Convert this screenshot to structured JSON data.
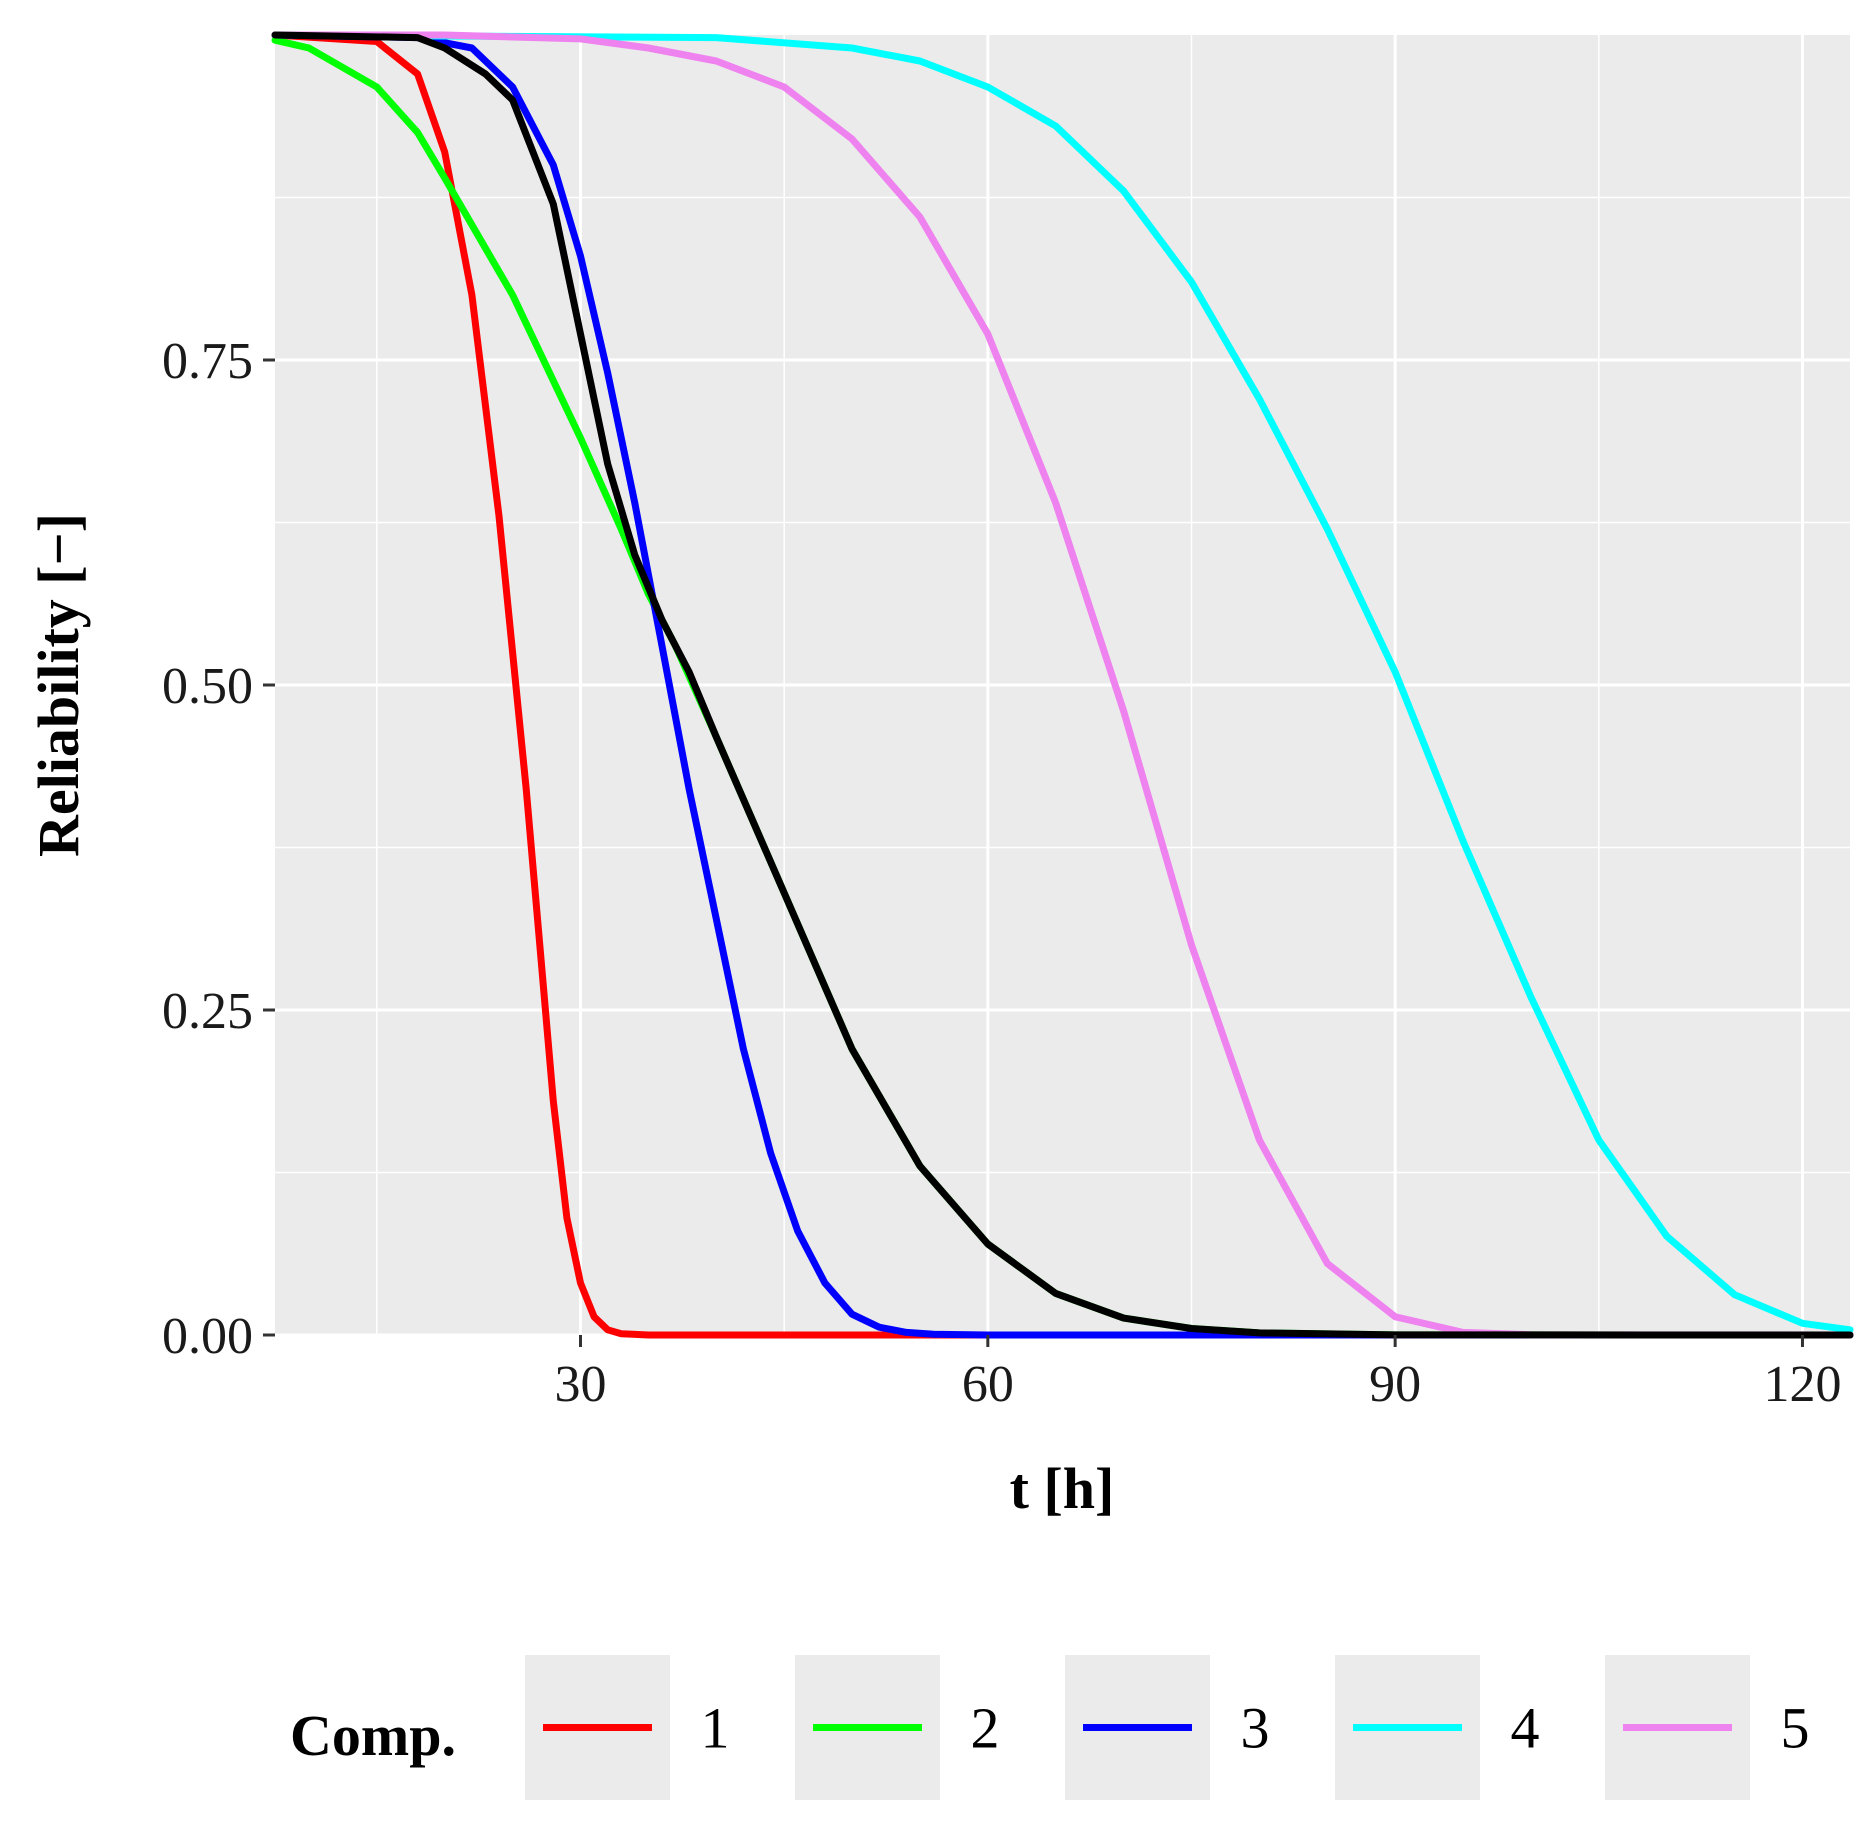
{
  "chart_data": {
    "type": "line",
    "title": "",
    "xlabel": "t [h]",
    "ylabel": "Reliability [−]",
    "xlim": [
      7.5,
      123.5
    ],
    "ylim": [
      0,
      1
    ],
    "x_ticks": [
      30,
      60,
      90,
      120
    ],
    "x_tick_labels": [
      "30",
      "60",
      "90",
      "120"
    ],
    "x_minor_ticks": [
      15,
      45,
      75,
      105
    ],
    "y_ticks": [
      0,
      0.25,
      0.5,
      0.75
    ],
    "y_tick_labels": [
      "0.00",
      "0.25",
      "0.50",
      "0.75"
    ],
    "y_minor_ticks": [
      0.125,
      0.375,
      0.625,
      0.875
    ],
    "grid": true,
    "legend": {
      "title": "Comp.",
      "position": "bottom",
      "entries": [
        "1",
        "2",
        "3",
        "4",
        "5"
      ]
    },
    "series": [
      {
        "name": "1",
        "color": "#ff0000",
        "x": [
          7.5,
          15,
          18,
          20,
          22,
          24,
          26,
          27,
          28,
          29,
          30,
          31,
          32,
          33,
          35,
          40,
          123.5
        ],
        "y": [
          1.0,
          0.995,
          0.97,
          0.91,
          0.8,
          0.63,
          0.42,
          0.3,
          0.18,
          0.09,
          0.04,
          0.014,
          0.004,
          0.001,
          0.0,
          0.0,
          0.0
        ]
      },
      {
        "name": "2",
        "color": "#00ff00",
        "x": [
          7.5,
          10,
          15,
          18,
          20,
          25,
          30,
          33,
          35,
          37,
          40,
          45,
          50,
          55,
          60,
          65,
          70,
          75,
          80,
          90,
          123.5
        ],
        "y": [
          0.996,
          0.99,
          0.96,
          0.925,
          0.89,
          0.8,
          0.69,
          0.62,
          0.57,
          0.53,
          0.46,
          0.34,
          0.22,
          0.13,
          0.07,
          0.032,
          0.013,
          0.005,
          0.0016,
          0.0001,
          0.0
        ]
      },
      {
        "name": "3",
        "color": "#0000ff",
        "x": [
          7.5,
          18,
          22,
          25,
          28,
          30,
          32,
          34,
          36,
          38,
          40,
          42,
          44,
          46,
          48,
          50,
          52,
          54,
          56,
          60,
          123.5
        ],
        "y": [
          1.0,
          0.998,
          0.99,
          0.96,
          0.9,
          0.83,
          0.74,
          0.64,
          0.53,
          0.42,
          0.32,
          0.22,
          0.14,
          0.08,
          0.04,
          0.016,
          0.006,
          0.002,
          0.0005,
          0.0,
          0.0
        ]
      },
      {
        "name": "4",
        "color": "#00ffff",
        "x": [
          7.5,
          40,
          50,
          55,
          60,
          65,
          70,
          75,
          80,
          85,
          90,
          95,
          100,
          105,
          110,
          115,
          120,
          123.5
        ],
        "y": [
          1.0,
          0.998,
          0.99,
          0.98,
          0.96,
          0.93,
          0.88,
          0.81,
          0.72,
          0.62,
          0.51,
          0.38,
          0.26,
          0.15,
          0.076,
          0.031,
          0.009,
          0.004
        ]
      },
      {
        "name": "5",
        "color": "#ee82ee",
        "x": [
          7.5,
          20,
          30,
          35,
          40,
          45,
          50,
          55,
          60,
          65,
          70,
          75,
          80,
          85,
          90,
          95,
          100,
          123.5
        ],
        "y": [
          1.0,
          1.0,
          0.997,
          0.99,
          0.98,
          0.96,
          0.92,
          0.86,
          0.77,
          0.64,
          0.48,
          0.3,
          0.15,
          0.055,
          0.014,
          0.002,
          0.0002,
          0.0
        ]
      },
      {
        "name": "",
        "color": "#000000",
        "x": [
          7.5,
          18,
          20,
          23,
          25,
          28,
          30,
          32,
          34,
          36,
          38,
          40,
          45,
          50,
          55,
          60,
          65,
          70,
          75,
          80,
          90,
          123.5
        ],
        "y": [
          1.0,
          0.998,
          0.99,
          0.97,
          0.95,
          0.87,
          0.77,
          0.67,
          0.6,
          0.55,
          0.51,
          0.46,
          0.34,
          0.22,
          0.13,
          0.07,
          0.032,
          0.013,
          0.005,
          0.0016,
          0.0001,
          0.0
        ]
      }
    ]
  }
}
